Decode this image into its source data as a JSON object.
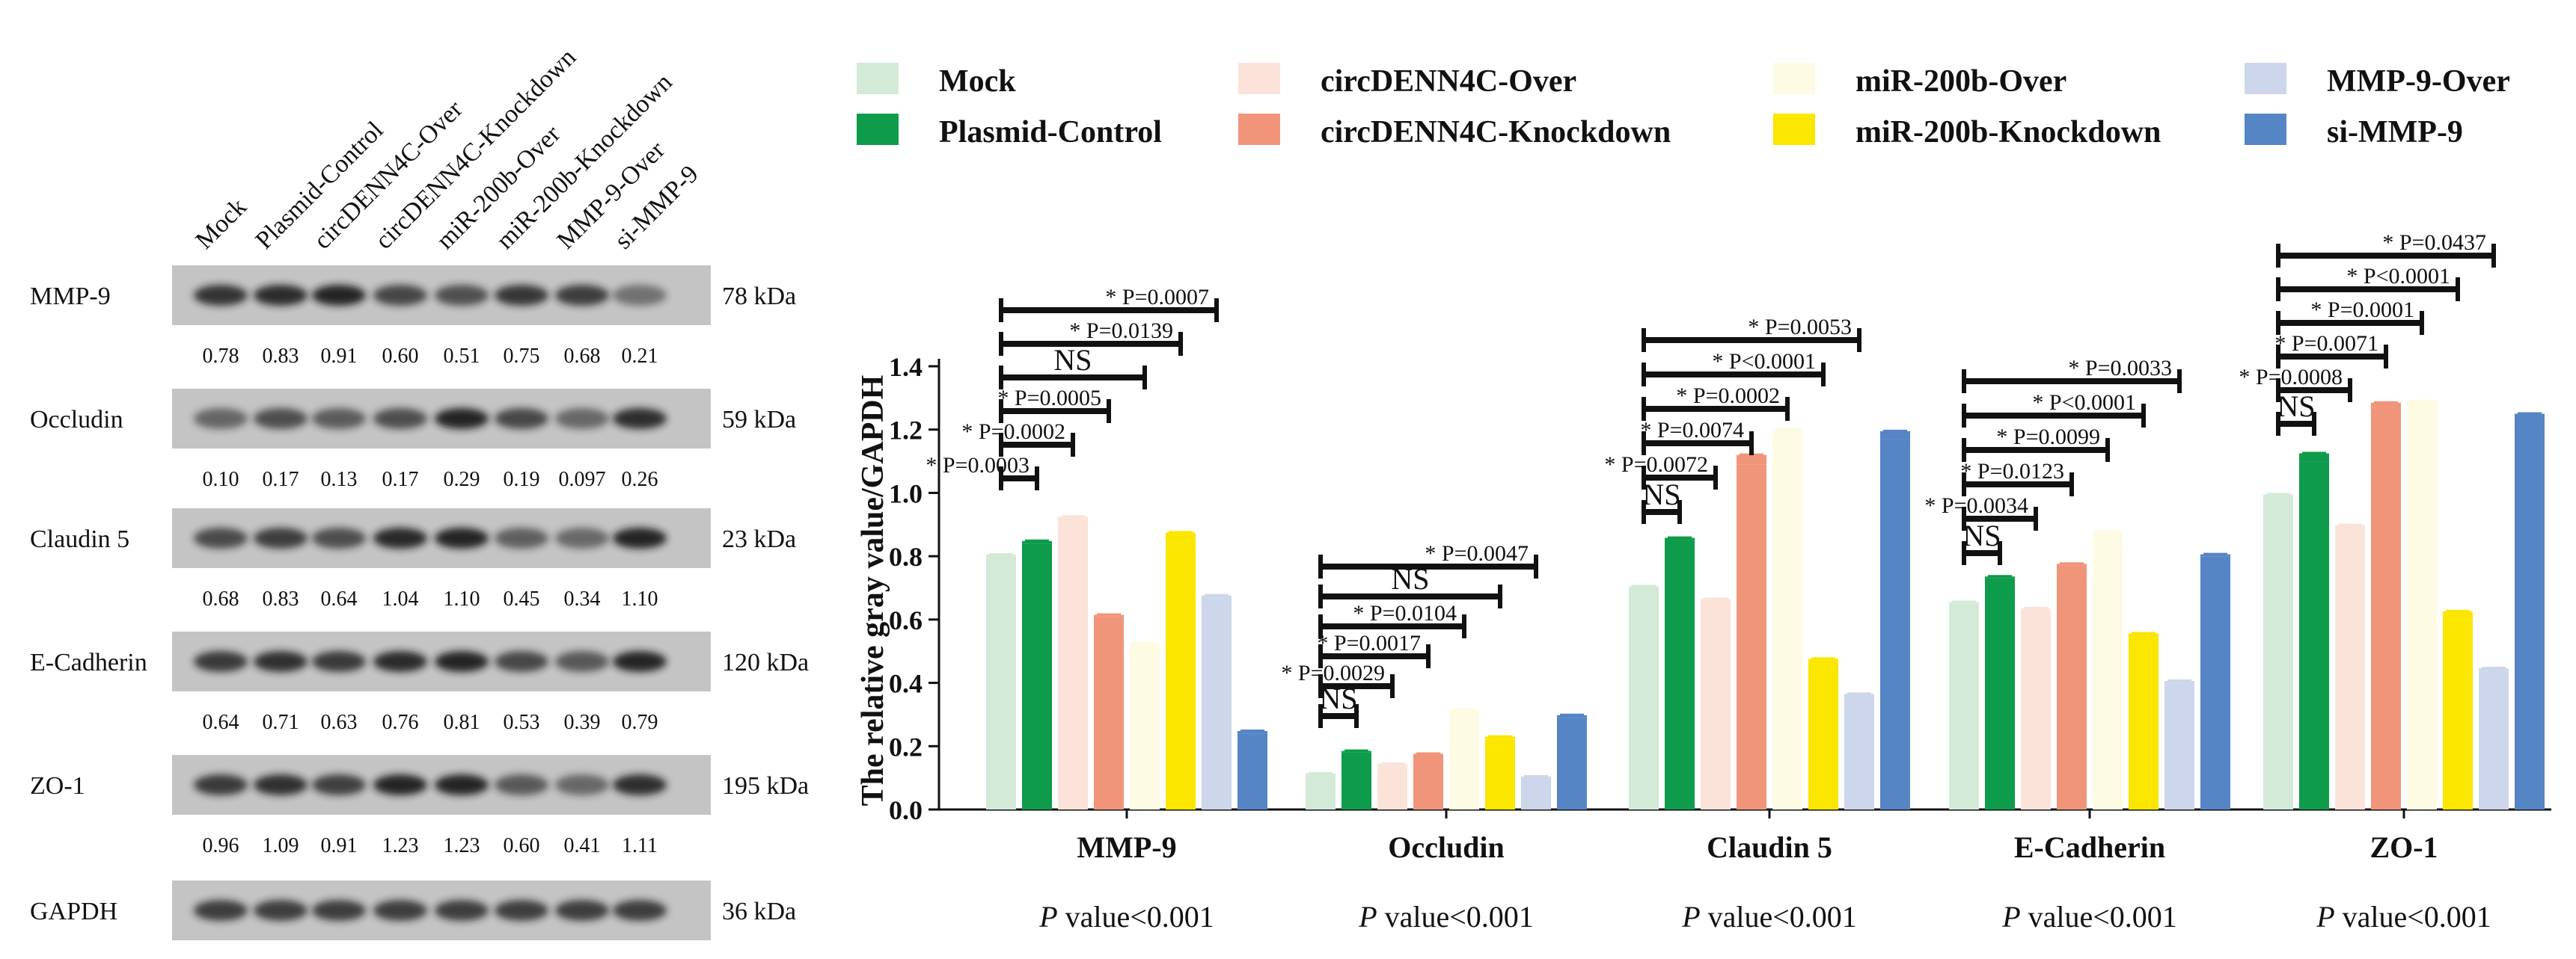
{
  "blot": {
    "lane_labels": [
      "Mock",
      "Plasmid-Control",
      "circDENN4C-Over",
      "circDENN4C-Knockdown",
      "miR-200b-Over",
      "miR-200b-Knockdown",
      "MMP-9-Over",
      "si-MMP-9"
    ],
    "rows": [
      {
        "protein": "MMP-9",
        "kda": "78 kDa",
        "values": [
          "0.78",
          "0.83",
          "0.91",
          "0.60",
          "0.51",
          "0.75",
          "0.68",
          "0.21"
        ]
      },
      {
        "protein": "Occludin",
        "kda": "59 kDa",
        "values": [
          "0.10",
          "0.17",
          "0.13",
          "0.17",
          "0.29",
          "0.19",
          "0.097",
          "0.26"
        ]
      },
      {
        "protein": "Claudin 5",
        "kda": "23 kDa",
        "values": [
          "0.68",
          "0.83",
          "0.64",
          "1.04",
          "1.10",
          "0.45",
          "0.34",
          "1.10"
        ]
      },
      {
        "protein": "E-Cadherin",
        "kda": "120 kDa",
        "values": [
          "0.64",
          "0.71",
          "0.63",
          "0.76",
          "0.81",
          "0.53",
          "0.39",
          "0.79"
        ]
      },
      {
        "protein": "ZO-1",
        "kda": "195 kDa",
        "values": [
          "0.96",
          "1.09",
          "0.91",
          "1.23",
          "1.23",
          "0.60",
          "0.41",
          "1.11"
        ]
      },
      {
        "protein": "GAPDH",
        "kda": "36 kDa",
        "values": []
      }
    ]
  },
  "chart_data": {
    "type": "bar",
    "ylabel": "The relative gray value/GAPDH",
    "ylim": [
      0,
      1.4
    ],
    "yticks": [
      "0.0",
      "0.2",
      "0.4",
      "0.6",
      "0.8",
      "1.0",
      "1.2",
      "1.4"
    ],
    "categories": [
      "MMP-9",
      "Occludin",
      "Claudin 5",
      "E-Cadherin",
      "ZO-1"
    ],
    "pvalue_prefix": "P",
    "pvalue_suffix": " value<0.001",
    "series": [
      {
        "name": "Mock",
        "color": "#d4ead9",
        "values": [
          0.8,
          0.11,
          0.7,
          0.65,
          0.99
        ],
        "err": [
          0.005,
          0.004,
          0.005,
          0.005,
          0.005
        ]
      },
      {
        "name": "Plasmid-Control",
        "color": "#0e9b4b",
        "values": [
          0.84,
          0.18,
          0.85,
          0.73,
          1.1
        ],
        "err": [
          0.008,
          0.005,
          0.008,
          0.006,
          0.025
        ]
      },
      {
        "name": "circDENN4C-Over",
        "color": "#fbe3da",
        "values": [
          0.92,
          0.14,
          0.66,
          0.63,
          0.89
        ],
        "err": [
          0.005,
          0.004,
          0.005,
          0.005,
          0.008
        ]
      },
      {
        "name": "circDENN4C-Knockdown",
        "color": "#f0957a",
        "values": [
          0.61,
          0.17,
          1.09,
          0.77,
          1.27
        ],
        "err": [
          0.005,
          0.006,
          0.03,
          0.006,
          0.015
        ]
      },
      {
        "name": "miR-200b-Over",
        "color": "#fefbe4",
        "values": [
          0.52,
          0.31,
          1.19,
          0.87,
          1.28
        ],
        "err": [
          0.005,
          0.005,
          0.01,
          0.008,
          0.01
        ]
      },
      {
        "name": "miR-200b-Knockdown",
        "color": "#fbe600",
        "values": [
          0.84,
          0.22,
          0.47,
          0.55,
          0.62
        ],
        "err": [
          0.035,
          0.01,
          0.006,
          0.006,
          0.006
        ]
      },
      {
        "name": "MMP-9-Over",
        "color": "#cdd6ea",
        "values": [
          0.67,
          0.1,
          0.36,
          0.4,
          0.44
        ],
        "err": [
          0.006,
          0.004,
          0.005,
          0.006,
          0.006
        ]
      },
      {
        "name": "si-MMP-9",
        "color": "#5585c5",
        "values": [
          0.24,
          0.29,
          1.17,
          0.8,
          1.21
        ],
        "err": [
          0.008,
          0.008,
          0.025,
          0.006,
          0.04
        ]
      }
    ],
    "significance": [
      {
        "category": "MMP-9",
        "labels": [
          "* P=0.0003",
          "* P=0.0002",
          "* P=0.0005",
          "NS",
          "* P=0.0139",
          "* P=0.0007"
        ]
      },
      {
        "category": "Occludin",
        "labels": [
          "NS",
          "* P=0.0029",
          "* P=0.0017",
          "* P=0.0104",
          "NS",
          "* P=0.0047"
        ]
      },
      {
        "category": "Claudin 5",
        "labels": [
          "NS",
          "* P=0.0072",
          "* P=0.0074",
          "* P=0.0002",
          "* P<0.0001",
          "* P=0.0053"
        ]
      },
      {
        "category": "E-Cadherin",
        "labels": [
          "NS",
          "* P=0.0034",
          "* P=0.0123",
          "* P=0.0099",
          "* P<0.0001",
          "* P=0.0033"
        ]
      },
      {
        "category": "ZO-1",
        "labels": [
          "NS",
          "* P=0.0008",
          "* P=0.0071",
          "* P=0.0001",
          "* P<0.0001",
          "* P=0.0437"
        ]
      }
    ]
  }
}
